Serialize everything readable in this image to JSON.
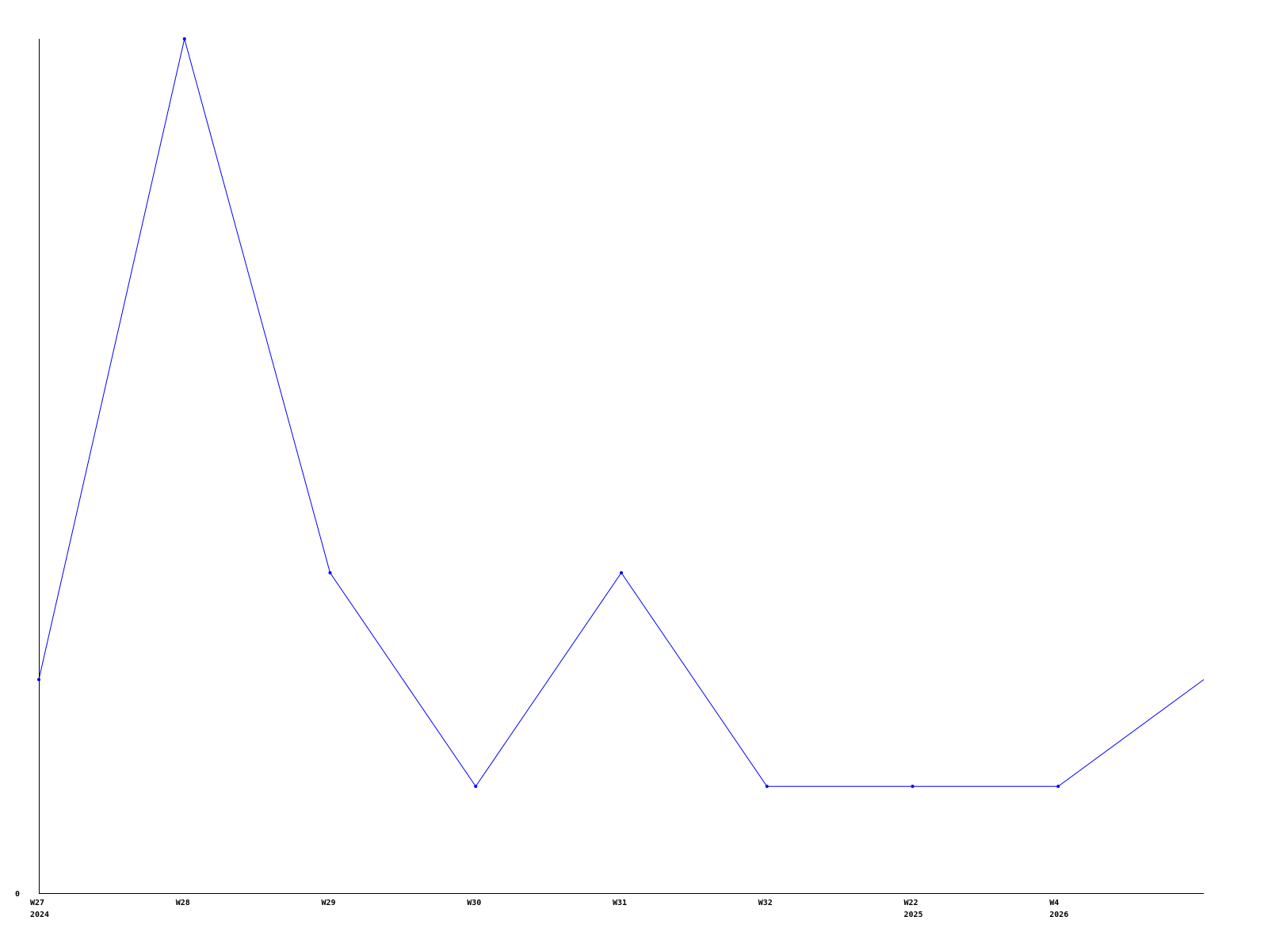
{
  "chart_data": {
    "type": "line",
    "title": "",
    "xlabel": "",
    "ylabel": "",
    "categories": [
      {
        "week": "W27",
        "year": "2024"
      },
      {
        "week": "W28",
        "year": ""
      },
      {
        "week": "W29",
        "year": ""
      },
      {
        "week": "W30",
        "year": ""
      },
      {
        "week": "W31",
        "year": ""
      },
      {
        "week": "W32",
        "year": ""
      },
      {
        "week": "W22",
        "year": "2025"
      },
      {
        "week": "W4",
        "year": "2026"
      },
      {
        "week": "",
        "year": ""
      }
    ],
    "series": [
      {
        "values": [
          2,
          8,
          3,
          1,
          3,
          1,
          1,
          1,
          2
        ],
        "color": "#0000ff"
      }
    ],
    "y_tick_labels": [
      "0"
    ],
    "ylim": [
      0,
      8
    ],
    "grid": false,
    "legend": "none",
    "axis_color": "#000000"
  }
}
